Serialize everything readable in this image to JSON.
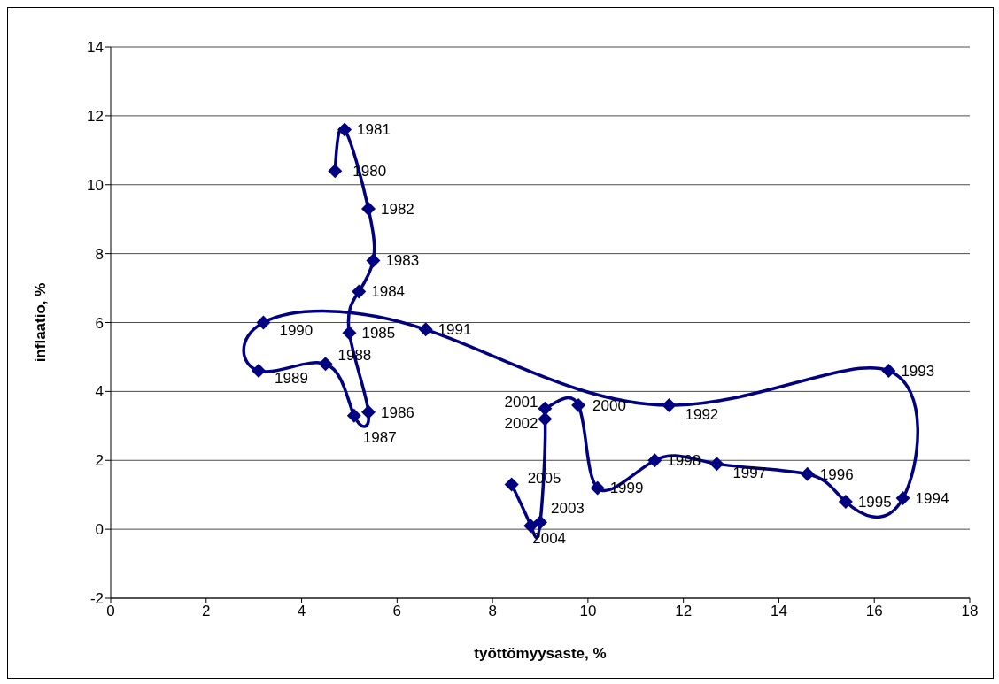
{
  "chart_data": {
    "type": "line",
    "xlabel": "työttömyysaste, %",
    "ylabel": "inflaatio, %",
    "series": [
      {
        "color": "#000080",
        "x": [
          4.7,
          4.9,
          5.4,
          5.5,
          5.2,
          5.0,
          5.4,
          5.1,
          4.5,
          3.1,
          3.2,
          6.6,
          11.7,
          16.3,
          16.6,
          15.4,
          14.6,
          12.7,
          11.4,
          10.2,
          9.8,
          9.1,
          9.1,
          9.0,
          8.8,
          8.4
        ],
        "values": [
          10.4,
          11.6,
          9.3,
          7.8,
          6.9,
          5.7,
          3.4,
          3.3,
          4.8,
          4.6,
          6.0,
          5.8,
          3.6,
          4.6,
          0.9,
          0.8,
          1.6,
          1.9,
          2.0,
          1.2,
          3.6,
          3.5,
          3.2,
          0.2,
          0.1,
          1.3
        ]
      }
    ],
    "xlim": [
      0,
      18
    ],
    "xticks": [
      0,
      2,
      4,
      6,
      8,
      10,
      12,
      14,
      16,
      18
    ],
    "ylim": [
      -2,
      14
    ],
    "yticks": [
      -2,
      0,
      2,
      4,
      6,
      8,
      10,
      12,
      14
    ],
    "grid": "y",
    "legend": false,
    "marker": "diamond",
    "line_style": "solid",
    "annotations": [
      {
        "text": "1980",
        "x": 4.7,
        "y": 10.4
      },
      {
        "text": "1981",
        "x": 4.9,
        "y": 11.6
      },
      {
        "text": "1982",
        "x": 5.4,
        "y": 9.3
      },
      {
        "text": "1983",
        "x": 5.5,
        "y": 7.8
      },
      {
        "text": "1984",
        "x": 5.2,
        "y": 6.9
      },
      {
        "text": "1985",
        "x": 5.0,
        "y": 5.7
      },
      {
        "text": "1986",
        "x": 5.4,
        "y": 3.4
      },
      {
        "text": "1987",
        "x": 5.1,
        "y": 3.3
      },
      {
        "text": "1988",
        "x": 4.5,
        "y": 4.8
      },
      {
        "text": "1989",
        "x": 3.1,
        "y": 4.6
      },
      {
        "text": "1990",
        "x": 3.2,
        "y": 6.0
      },
      {
        "text": "1991",
        "x": 6.6,
        "y": 5.8
      },
      {
        "text": "1992",
        "x": 11.7,
        "y": 3.6
      },
      {
        "text": "1993",
        "x": 16.3,
        "y": 4.6
      },
      {
        "text": "1994",
        "x": 16.6,
        "y": 0.9
      },
      {
        "text": "1995",
        "x": 15.4,
        "y": 0.8
      },
      {
        "text": "1996",
        "x": 14.6,
        "y": 1.6
      },
      {
        "text": "1997",
        "x": 12.7,
        "y": 1.9
      },
      {
        "text": "1998",
        "x": 11.4,
        "y": 2.0
      },
      {
        "text": "1999",
        "x": 10.2,
        "y": 1.2
      },
      {
        "text": "2000",
        "x": 9.8,
        "y": 3.6
      },
      {
        "text": "2001",
        "x": 9.1,
        "y": 3.5
      },
      {
        "text": "2002",
        "x": 9.1,
        "y": 3.2
      },
      {
        "text": "2003",
        "x": 9.0,
        "y": 0.2
      },
      {
        "text": "2004",
        "x": 8.8,
        "y": 0.1
      },
      {
        "text": "2005",
        "x": 8.4,
        "y": 1.3
      }
    ]
  }
}
